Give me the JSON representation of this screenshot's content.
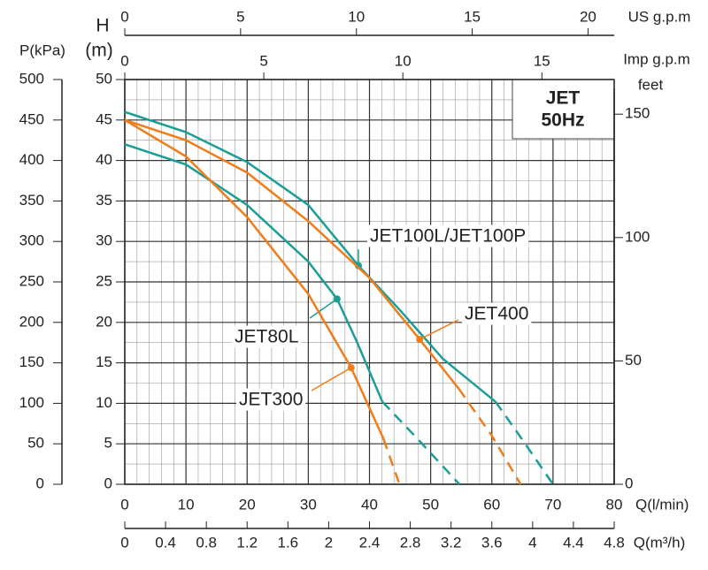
{
  "chart_data": {
    "type": "line",
    "title": "JET",
    "subtitle": "50Hz",
    "x_label": "Q(l/min)",
    "y_label": "H",
    "y_unit": "(m)",
    "xlim": [
      0,
      80
    ],
    "xticks": [
      0,
      10,
      20,
      30,
      40,
      50,
      60,
      70,
      80
    ],
    "ylim": [
      0,
      50
    ],
    "yticks": [
      0,
      5,
      10,
      15,
      20,
      25,
      30,
      35,
      40,
      45,
      50
    ],
    "grid": true,
    "minor_grid": {
      "x": 2,
      "y": 2.5
    },
    "axes": [
      {
        "label": "P(kPa)",
        "side": "left",
        "lim": [
          0,
          500
        ],
        "ticks": [
          0,
          50,
          100,
          150,
          200,
          250,
          300,
          350,
          400,
          450,
          500
        ]
      },
      {
        "label": "feet",
        "side": "right",
        "lim": [
          0,
          164.04
        ],
        "ticks": [
          0,
          50,
          100,
          150
        ]
      },
      {
        "label": "US g.p.m",
        "side": "top-outer",
        "lim": [
          0,
          21.13
        ],
        "ticks": [
          0,
          5,
          10,
          15,
          20
        ]
      },
      {
        "label": "Imp g.p.m",
        "side": "top-inner",
        "lim": [
          0,
          17.6
        ],
        "ticks": [
          0,
          5,
          10,
          15
        ]
      },
      {
        "label": "Q(m³/h)",
        "side": "bottom-outer",
        "lim": [
          0,
          4.8
        ],
        "ticks": [
          0,
          0.4,
          0.8,
          1.2,
          1.6,
          2,
          2.4,
          2.8,
          3.2,
          3.6,
          4,
          4.4,
          4.8
        ]
      }
    ],
    "series": [
      {
        "name": "JET100L/JET100P",
        "color": "#1a9e96",
        "x": [
          0,
          10,
          20,
          30,
          38.2,
          45,
          52,
          60.6
        ],
        "values": [
          46,
          43.5,
          39.8,
          34.5,
          27,
          21.5,
          15.5,
          10.2
        ],
        "dashed_x": [
          60.6,
          65,
          70
        ],
        "dashed_values": [
          10.2,
          5.5,
          0
        ],
        "marker": {
          "x": 38.2,
          "y": 27
        }
      },
      {
        "name": "JET80L",
        "color": "#1a9e96",
        "x": [
          0,
          10,
          20,
          30,
          34.7,
          38,
          42.1
        ],
        "values": [
          42,
          39.5,
          34.5,
          27.5,
          22.9,
          17.5,
          10.2
        ],
        "dashed_x": [
          42.1,
          48,
          54.7
        ],
        "dashed_values": [
          10.2,
          5.5,
          0
        ],
        "marker": {
          "x": 34.7,
          "y": 22.9
        }
      },
      {
        "name": "JET400",
        "color": "#f07d1a",
        "x": [
          0,
          10,
          20,
          30,
          40,
          48.2,
          54.6
        ],
        "values": [
          45,
          42.5,
          38.5,
          32.5,
          25.5,
          17.9,
          11.8
        ],
        "dashed_x": [
          54.6,
          60,
          64.7
        ],
        "dashed_values": [
          11.8,
          6,
          0
        ],
        "marker": {
          "x": 48.2,
          "y": 17.9
        }
      },
      {
        "name": "JET300",
        "color": "#f07d1a",
        "x": [
          0,
          10,
          20,
          30,
          37,
          42.3
        ],
        "values": [
          45,
          40.5,
          33,
          23.5,
          14.4,
          5.6
        ],
        "dashed_x": [
          42.3,
          44.9
        ],
        "dashed_values": [
          5.6,
          0
        ],
        "marker": {
          "x": 37,
          "y": 14.4
        }
      }
    ]
  }
}
